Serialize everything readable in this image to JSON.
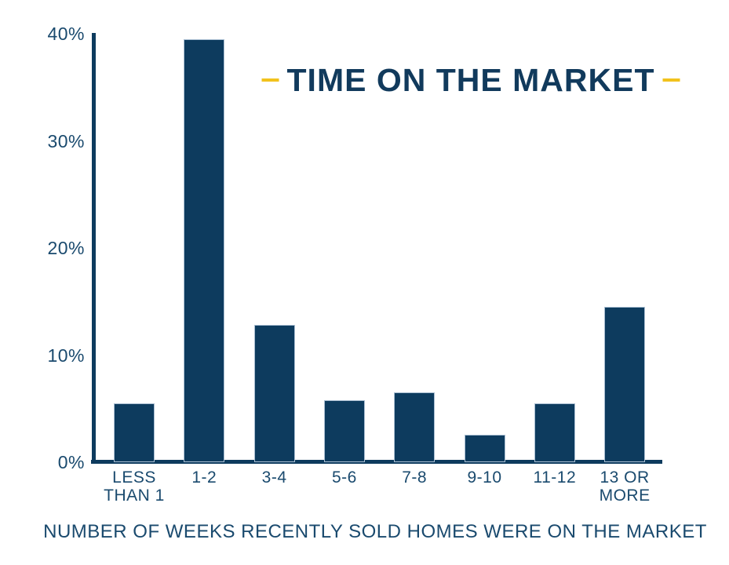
{
  "colors": {
    "navy": "#0d3b5e",
    "label_navy": "#1a4a6e",
    "gold_accent": "#f2c21d",
    "background": "#ffffff",
    "bar_edge": "#a9bed2"
  },
  "title": {
    "text": "TIME ON THE MARKET"
  },
  "caption": {
    "text": "NUMBER OF WEEKS RECENTLY SOLD HOMES WERE ON THE MARKET"
  },
  "chart_data": {
    "type": "bar",
    "title": "TIME ON THE MARKET",
    "categories": [
      "LESS THAN 1",
      "1-2",
      "3-4",
      "5-6",
      "7-8",
      "9-10",
      "11-12",
      "13 OR MORE"
    ],
    "category_lines": [
      "LESS\nTHAN 1",
      "1-2",
      "3-4",
      "5-6",
      "7-8",
      "9-10",
      "11-12",
      "13 OR\nMORE"
    ],
    "values": [
      5.5,
      39.5,
      12.8,
      5.8,
      6.5,
      2.6,
      5.5,
      14.5
    ],
    "unit": "%",
    "y_ticks": [
      "40%",
      "30%",
      "20%",
      "10%",
      "0%"
    ],
    "y_tick_values": [
      40,
      30,
      20,
      10,
      0
    ],
    "ylim": [
      0,
      40
    ],
    "xlabel": "NUMBER OF WEEKS RECENTLY SOLD HOMES WERE ON THE MARKET",
    "ylabel": "",
    "grid": false,
    "legend": "none",
    "bar_color": "#0d3b5e",
    "title_dash_color": "#f2c21d"
  }
}
